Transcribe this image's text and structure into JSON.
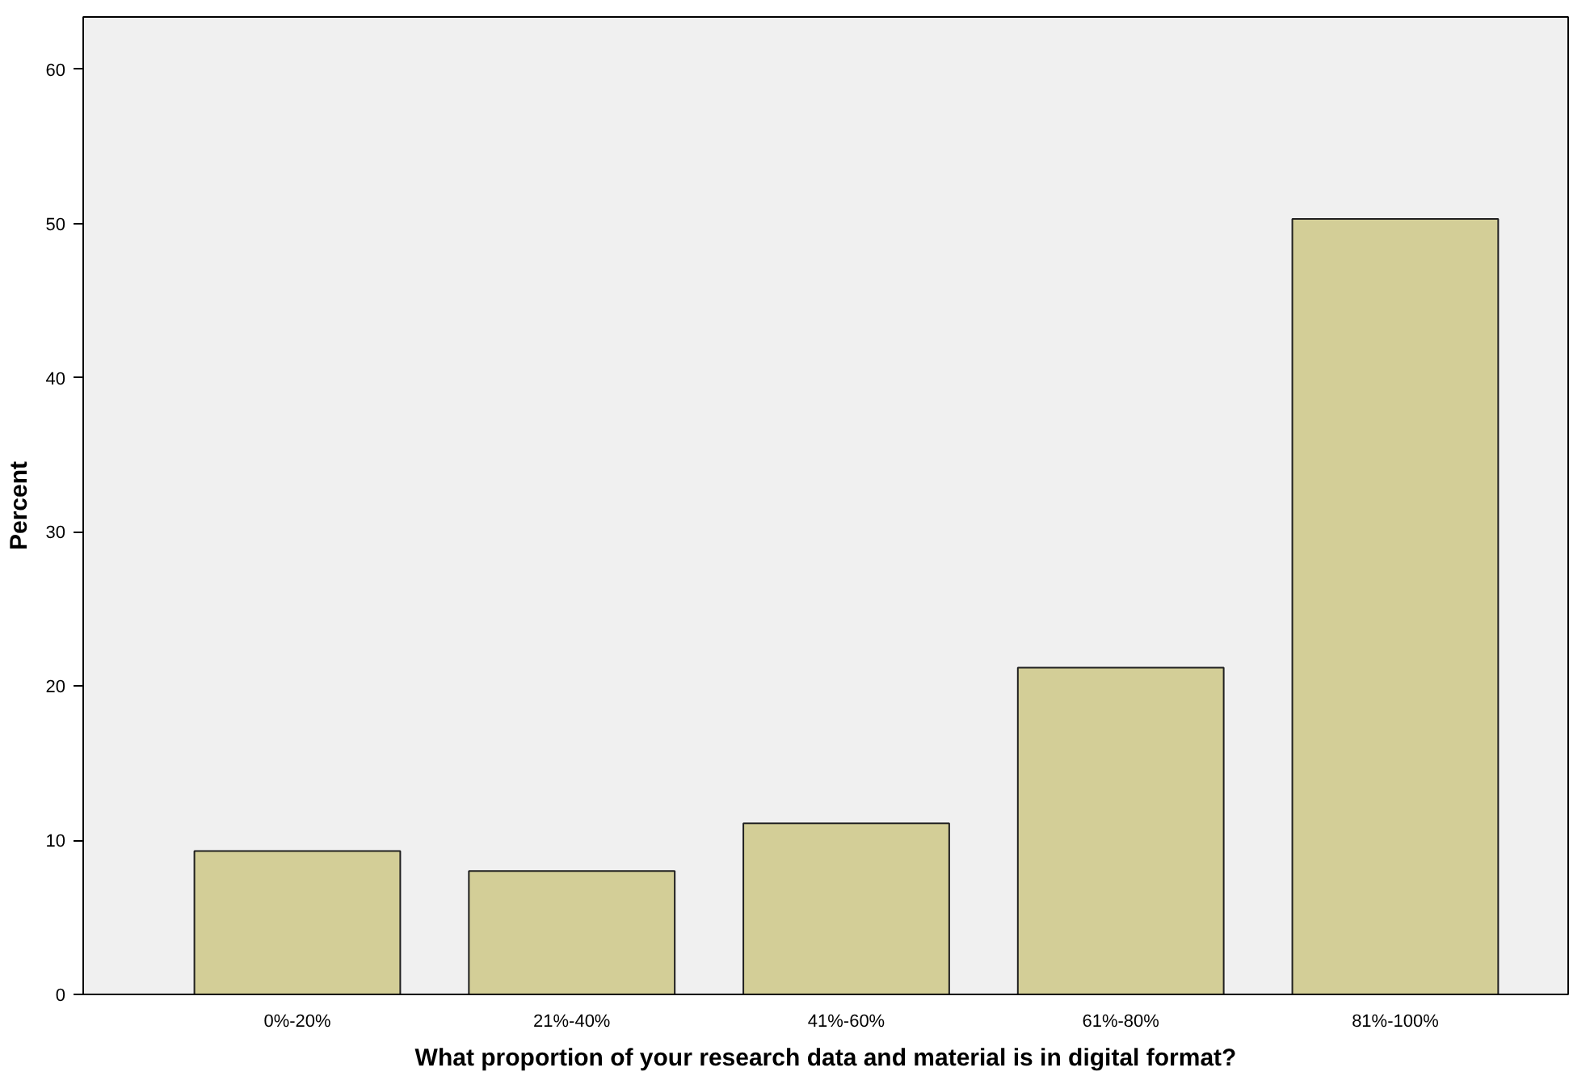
{
  "chart_data": {
    "type": "bar",
    "xlabel": "What proportion of your research data and material is in digital format?",
    "ylabel": "Percent",
    "categories": [
      "0%-20%",
      "21%-40%",
      "41%-60%",
      "61%-80%",
      "81%-100%"
    ],
    "values": [
      9.3,
      8.0,
      11.1,
      21.2,
      50.3
    ],
    "color": "#d3ce97",
    "ylim": [
      0,
      63.4
    ],
    "yticks": [
      0,
      10,
      20,
      30,
      40,
      50,
      60
    ],
    "grid": false
  }
}
